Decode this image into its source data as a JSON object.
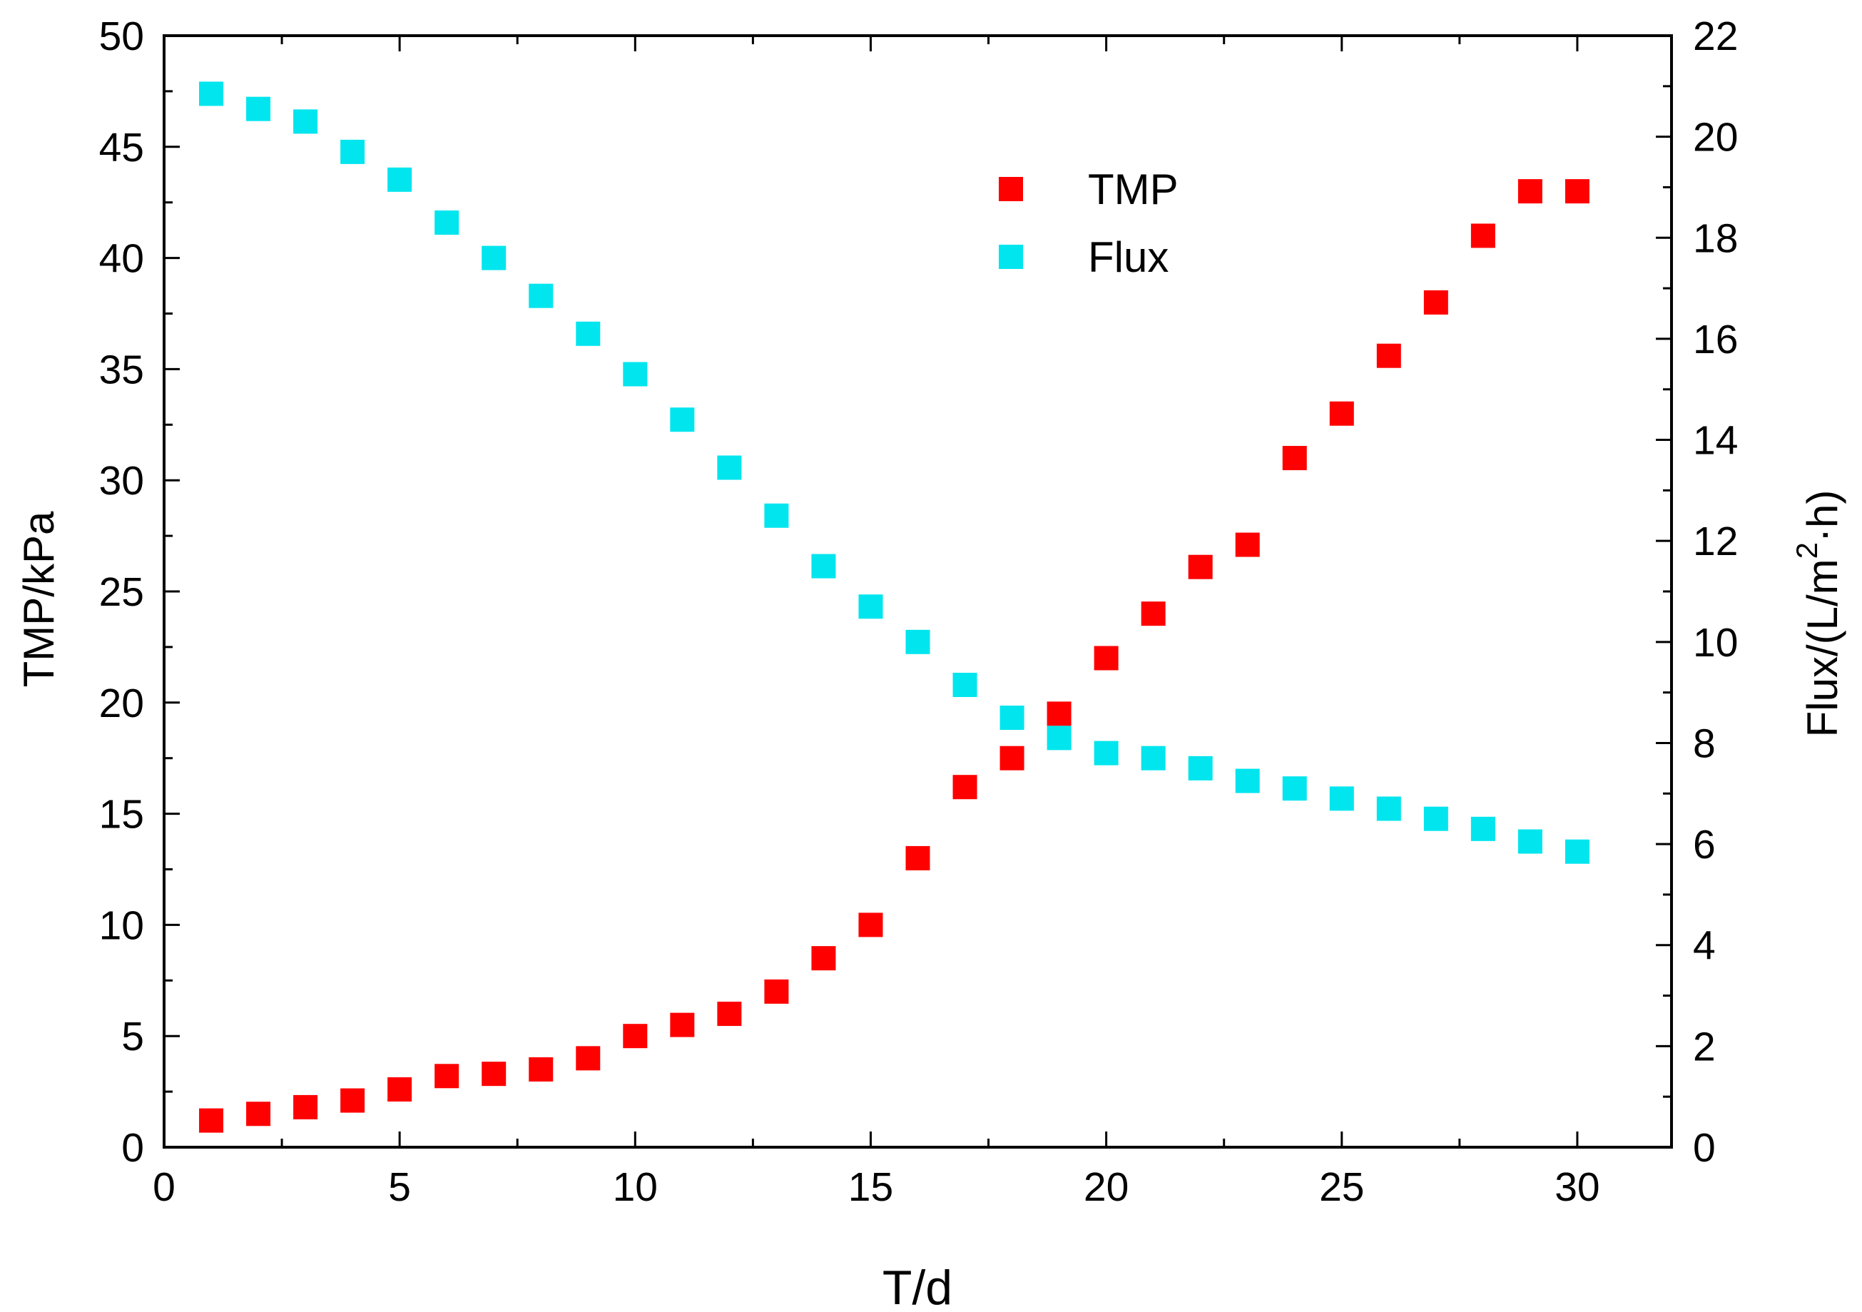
{
  "chart_data": {
    "type": "scatter",
    "title": "",
    "xlabel": "T/d",
    "ylabel_left": "TMP/kPa",
    "ylabel_right_prefix": "Flux/(L/m",
    "ylabel_right_sup": "2",
    "ylabel_right_suffix": "·h)",
    "xlim": [
      0,
      32
    ],
    "ylim_left": [
      0,
      50
    ],
    "ylim_right": [
      0,
      22
    ],
    "x_ticks": [
      0,
      5,
      10,
      15,
      20,
      25,
      30
    ],
    "y_left_ticks": [
      0,
      5,
      10,
      15,
      20,
      25,
      30,
      35,
      40,
      45,
      50
    ],
    "y_right_ticks": [
      0,
      2,
      4,
      6,
      8,
      10,
      12,
      14,
      16,
      18,
      20,
      22
    ],
    "grid": false,
    "legend_position": "top-right",
    "series": [
      {
        "name": "TMP",
        "axis": "left",
        "color": "#ff0000",
        "marker": "square",
        "x": [
          1,
          2,
          3,
          4,
          5,
          6,
          7,
          8,
          9,
          10,
          11,
          12,
          13,
          14,
          15,
          16,
          17,
          18,
          19,
          20,
          21,
          22,
          23,
          24,
          25,
          26,
          27,
          28,
          29,
          30
        ],
        "values": [
          1.2,
          1.5,
          1.8,
          2.1,
          2.6,
          3.2,
          3.3,
          3.5,
          4.0,
          5.0,
          5.5,
          6.0,
          7.0,
          8.5,
          10.0,
          13.0,
          16.2,
          17.5,
          19.5,
          22.0,
          24.0,
          26.1,
          27.1,
          31.0,
          33.0,
          35.6,
          38.0,
          41.0,
          43.0,
          43.0
        ]
      },
      {
        "name": "Flux",
        "axis": "right",
        "color": "#00e5ee",
        "marker": "square",
        "x": [
          1,
          2,
          3,
          4,
          5,
          6,
          7,
          8,
          9,
          10,
          11,
          12,
          13,
          14,
          15,
          16,
          17,
          18,
          19,
          20,
          21,
          22,
          23,
          24,
          25,
          26,
          27,
          28,
          29,
          30
        ],
        "values": [
          20.85,
          20.55,
          20.3,
          19.7,
          19.15,
          18.3,
          17.6,
          16.85,
          16.1,
          15.3,
          14.4,
          13.45,
          12.5,
          11.5,
          10.7,
          10.0,
          9.15,
          8.5,
          8.1,
          7.8,
          7.7,
          7.5,
          7.25,
          7.1,
          6.9,
          6.7,
          6.5,
          6.3,
          6.05,
          5.85
        ]
      }
    ]
  }
}
